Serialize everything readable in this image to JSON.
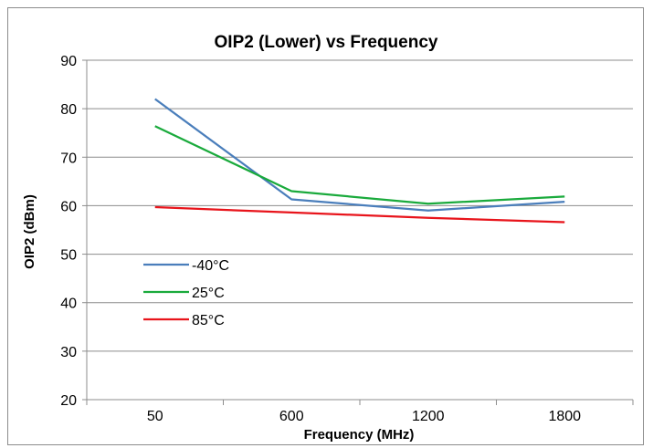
{
  "chart_data": {
    "type": "line",
    "title": "OIP2 (Lower) vs Frequency",
    "xlabel": "Frequency (MHz)",
    "ylabel": "OIP2 (dBm)",
    "categories": [
      "50",
      "600",
      "1200",
      "1800"
    ],
    "ylim": [
      20,
      90
    ],
    "yticks": [
      20,
      30,
      40,
      50,
      60,
      70,
      80,
      90
    ],
    "grid": true,
    "legend_position": "center-left",
    "series": [
      {
        "name": "-40°C",
        "color": "#4a7ebb",
        "values": [
          82.0,
          61.3,
          59.0,
          60.8
        ]
      },
      {
        "name": "25°C",
        "color": "#1aaa3c",
        "values": [
          76.4,
          63.0,
          60.4,
          61.9
        ]
      },
      {
        "name": "85°C",
        "color": "#e8141b",
        "values": [
          59.7,
          58.6,
          57.5,
          56.6
        ]
      }
    ]
  }
}
